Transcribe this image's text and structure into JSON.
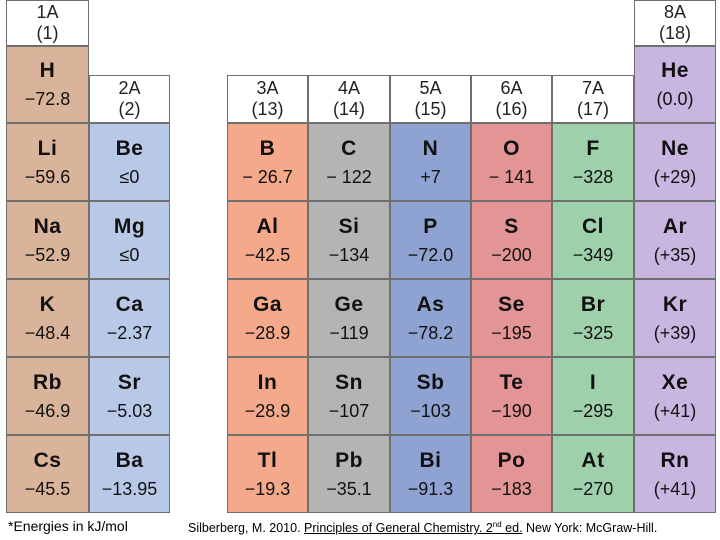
{
  "groups": {
    "g1": [
      "1A",
      "(1)"
    ],
    "g2": [
      "2A",
      "(2)"
    ],
    "g13": [
      "3A",
      "(13)"
    ],
    "g14": [
      "4A",
      "(14)"
    ],
    "g15": [
      "5A",
      "(15)"
    ],
    "g16": [
      "6A",
      "(16)"
    ],
    "g17": [
      "7A",
      "(17)"
    ],
    "g18": [
      "8A",
      "(18)"
    ]
  },
  "elements": {
    "H": {
      "symbol": "H",
      "value": "−72.8"
    },
    "He": {
      "symbol": "He",
      "value": "(0.0)"
    },
    "Li": {
      "symbol": "Li",
      "value": "−59.6"
    },
    "Be": {
      "symbol": "Be",
      "value": "≤0"
    },
    "B": {
      "symbol": "B",
      "value": "− 26.7"
    },
    "C": {
      "symbol": "C",
      "value": "− 122"
    },
    "N": {
      "symbol": "N",
      "value": "+7"
    },
    "O": {
      "symbol": "O",
      "value": "− 141"
    },
    "F": {
      "symbol": "F",
      "value": "−328"
    },
    "Ne": {
      "symbol": "Ne",
      "value": "(+29)"
    },
    "Na": {
      "symbol": "Na",
      "value": "−52.9"
    },
    "Mg": {
      "symbol": "Mg",
      "value": "≤0"
    },
    "Al": {
      "symbol": "Al",
      "value": "−42.5"
    },
    "Si": {
      "symbol": "Si",
      "value": "−134"
    },
    "P": {
      "symbol": "P",
      "value": "−72.0"
    },
    "S": {
      "symbol": "S",
      "value": "−200"
    },
    "Cl": {
      "symbol": "Cl",
      "value": "−349"
    },
    "Ar": {
      "symbol": "Ar",
      "value": "(+35)"
    },
    "K": {
      "symbol": "K",
      "value": "−48.4"
    },
    "Ca": {
      "symbol": "Ca",
      "value": "−2.37"
    },
    "Ga": {
      "symbol": "Ga",
      "value": "−28.9"
    },
    "Ge": {
      "symbol": "Ge",
      "value": "−119"
    },
    "As": {
      "symbol": "As",
      "value": "−78.2"
    },
    "Se": {
      "symbol": "Se",
      "value": "−195"
    },
    "Br": {
      "symbol": "Br",
      "value": "−325"
    },
    "Kr": {
      "symbol": "Kr",
      "value": "(+39)"
    },
    "Rb": {
      "symbol": "Rb",
      "value": "−46.9"
    },
    "Sr": {
      "symbol": "Sr",
      "value": "−5.03"
    },
    "In": {
      "symbol": "In",
      "value": "−28.9"
    },
    "Sn": {
      "symbol": "Sn",
      "value": "−107"
    },
    "Sb": {
      "symbol": "Sb",
      "value": "−103"
    },
    "Te": {
      "symbol": "Te",
      "value": "−190"
    },
    "I": {
      "symbol": "I",
      "value": "−295"
    },
    "Xe": {
      "symbol": "Xe",
      "value": "(+41)"
    },
    "Cs": {
      "symbol": "Cs",
      "value": "−45.5"
    },
    "Ba": {
      "symbol": "Ba",
      "value": "−13.95"
    },
    "Tl": {
      "symbol": "Tl",
      "value": "−19.3"
    },
    "Pb": {
      "symbol": "Pb",
      "value": "−35.1"
    },
    "Bi": {
      "symbol": "Bi",
      "value": "−91.3"
    },
    "Po": {
      "symbol": "Po",
      "value": "−183"
    },
    "At": {
      "symbol": "At",
      "value": "−270"
    },
    "Rn": {
      "symbol": "Rn",
      "value": "(+41)"
    }
  },
  "footer": {
    "note": "*Energies in kJ/mol",
    "citation_pre": "Silberberg, M. 2010. ",
    "citation_title_a": "Principles of General Chemistry. 2",
    "citation_sup": "nd",
    "citation_title_b": " ed.",
    "citation_post": " New York: McGraw-Hill."
  },
  "colors": {
    "group1": "#d9b49a",
    "group2": "#b8c9e8",
    "group13": "#f3a98a",
    "group14": "#b4b4b4",
    "group15": "#8fa3d3",
    "group16": "#e39494",
    "group17": "#9fd0ac",
    "group18": "#c8b6e0"
  }
}
